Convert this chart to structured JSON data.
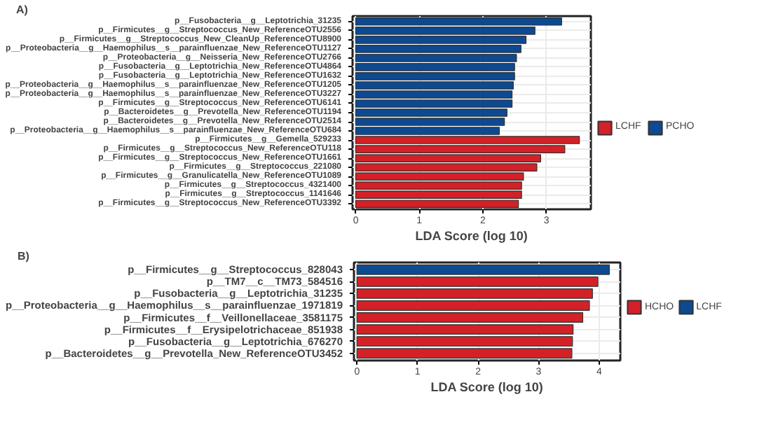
{
  "chart_data": [
    {
      "type": "bar",
      "orientation": "horizontal",
      "title": "A)",
      "xlabel": "LDA Score (log 10)",
      "categories": [
        "p__Fusobacteria__g__Leptotrichia_31235",
        "p__Firmicutes__g__Streptococcus_New_ReferenceOTU2556",
        "p__Firmicutes__g__Streptococcus_New_CleanUp_ReferenceOTU8900",
        "p__Proteobacteria__g__Haemophilus__s__parainfluenzae_New_ReferenceOTU1127",
        "p__Proteobacteria__g__Neisseria_New_ReferenceOTU2766",
        "p__Fusobacteria__g__Leptotrichia_New_ReferenceOTU4864",
        "p__Fusobacteria__g__Leptotrichia_New_ReferenceOTU1632",
        "p__Proteobacteria__g__Haemophilus__s__parainfluenzae_New_ReferenceOTU1205",
        "p__Proteobacteria__g__Haemophilus__s__parainfluenzae_New_ReferenceOTU3227",
        "p__Firmicutes__g__Streptococcus_New_ReferenceOTU6141",
        "p__Bacteroidetes__g__Prevotella_New_ReferenceOTU1194",
        "p__Bacteroidetes__g__Prevotella_New_ReferenceOTU2514",
        "p__Proteobacteria__g__Haemophilus__s__parainfluenzae_New_ReferenceOTU684",
        "p__Firmicutes__g__Gemella_529233",
        "p__Firmicutes__g__Streptococcus_New_ReferenceOTU118",
        "p__Firmicutes__g__Streptococcus_New_ReferenceOTU1661",
        "p__Firmicutes__g__Streptococcus_221080",
        "p__Firmicutes__g__Granulicatella_New_ReferenceOTU1089",
        "p__Firmicutes__g__Streptococcus_4321400",
        "p__Firmicutes__g__Streptococcus_1141646",
        "p__Firmicutes__g__Streptococcus_New_ReferenceOTU3392"
      ],
      "series": [
        {
          "name": "LCHF",
          "color": "#d42027",
          "values": [
            null,
            null,
            null,
            null,
            null,
            null,
            null,
            null,
            null,
            null,
            null,
            null,
            null,
            3.52,
            3.29,
            2.91,
            2.85,
            2.64,
            2.61,
            2.61,
            2.56
          ]
        },
        {
          "name": "PCHO",
          "color": "#0d4a92",
          "values": [
            3.24,
            2.82,
            2.68,
            2.6,
            2.53,
            2.5,
            2.5,
            2.48,
            2.46,
            2.46,
            2.38,
            2.34,
            2.26,
            null,
            null,
            null,
            null,
            null,
            null,
            null,
            null
          ]
        }
      ],
      "xlim": [
        -0.05,
        3.7
      ],
      "xticks": [
        0,
        1,
        2,
        3
      ],
      "grid": true,
      "legend": "right"
    },
    {
      "type": "bar",
      "orientation": "horizontal",
      "title": "B)",
      "xlabel": "LDA Score (log 10)",
      "categories": [
        "p__Firmicutes__g__Streptococcus_828043",
        "p__TM7__c__TM73_584516",
        "p__Fusobacteria__g__Leptotrichia_31235",
        "p__Proteobacteria__g__Haemophilus__s__parainfluenzae_1971819",
        "p__Firmicutes__f__Veillonellaceae_3581175",
        "p__Firmicutes__f__Erysipelotrichaceae_851938",
        "p__Fusobacteria__g__Leptotrichia_676270",
        "p__Bacteroidetes__g__Prevotella_New_ReferenceOTU3452"
      ],
      "series": [
        {
          "name": "HCHO",
          "color": "#d42027",
          "values": [
            null,
            3.98,
            3.89,
            3.84,
            3.73,
            3.57,
            3.56,
            3.55
          ]
        },
        {
          "name": "LCHF",
          "color": "#0d4a92",
          "values": [
            4.17,
            null,
            null,
            null,
            null,
            null,
            null,
            null
          ]
        }
      ],
      "xlim": [
        -0.05,
        4.35
      ],
      "xticks": [
        0,
        1,
        2,
        3,
        4
      ],
      "grid": true,
      "legend": "right"
    }
  ]
}
